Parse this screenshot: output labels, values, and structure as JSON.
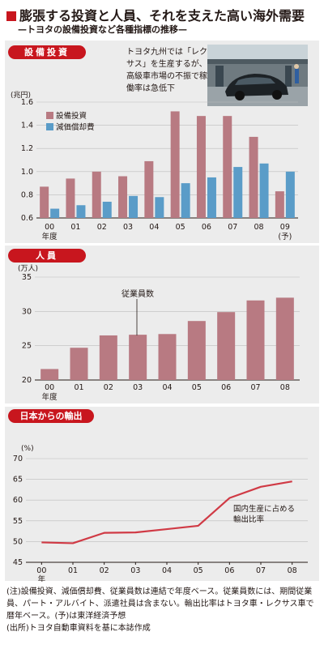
{
  "header": {
    "title": "膨張する投資と人員、それを支えた高い海外需要",
    "subtitle": "—トヨタの設備投資など各種指標の推移—"
  },
  "photo": {
    "caption": "トヨタ九州では「レクサス」を生産するが、高級車市場の不振で稼働率は急低下"
  },
  "notes": {
    "note1": "(注)設備投資、減価償却費、従業員数は連結で年度ベース。従業員数には、期間従業員、パート・アルバイト、派遣社員は含まない。輸出比率はトヨタ車・レクサス車で暦年ベース。(予)は東洋経済予想",
    "note2": "(出所)トヨタ自動車資料を基に本誌作成"
  },
  "colors": {
    "accent": "#c8161e",
    "bar_pink": "#b87a82",
    "bar_blue": "#5a9cc8",
    "line": "#d03a45",
    "panel": "#ececec"
  },
  "chart_data": [
    {
      "type": "bar",
      "section_label": "設備投資",
      "unit": "(兆円)",
      "categories": [
        "00",
        "01",
        "02",
        "03",
        "04",
        "05",
        "06",
        "07",
        "08",
        "09"
      ],
      "category_sublabels": [
        "年度",
        "",
        "",
        "",
        "",
        "",
        "",
        "",
        "",
        "(予)"
      ],
      "series": [
        {
          "name": "設備投資",
          "values": [
            0.87,
            0.94,
            1.0,
            0.96,
            1.09,
            1.52,
            1.48,
            1.48,
            1.3,
            0.83
          ]
        },
        {
          "name": "減価償却費",
          "values": [
            0.68,
            0.71,
            0.74,
            0.79,
            0.78,
            0.9,
            0.95,
            1.04,
            1.07,
            1.0
          ]
        }
      ],
      "yticks": [
        "0.6",
        "0.8",
        "1.0",
        "1.2",
        "1.4",
        "1.6"
      ],
      "ylim": [
        0.6,
        1.6
      ],
      "legend": "top-left"
    },
    {
      "type": "bar",
      "section_label": "人員",
      "unit": "(万人)",
      "categories": [
        "00",
        "01",
        "02",
        "03",
        "04",
        "05",
        "06",
        "07",
        "08"
      ],
      "category_sublabels": [
        "年度",
        "",
        "",
        "",
        "",
        "",
        "",
        "",
        ""
      ],
      "series": [
        {
          "name": "従業員数",
          "values": [
            21.6,
            24.7,
            26.5,
            26.6,
            26.7,
            28.6,
            29.9,
            31.6,
            32.0
          ]
        }
      ],
      "yticks": [
        "20",
        "25",
        "30",
        "35"
      ],
      "ylim": [
        20,
        35
      ],
      "annotation": "従業員数"
    },
    {
      "type": "line",
      "section_label": "日本からの輸出",
      "unit": "(%)",
      "categories": [
        "00",
        "01",
        "02",
        "03",
        "04",
        "05",
        "06",
        "07",
        "08"
      ],
      "category_sublabels": [
        "年",
        "",
        "",
        "",
        "",
        "",
        "",
        "",
        ""
      ],
      "series": [
        {
          "name": "国内生産に占める輸出比率",
          "values": [
            49.8,
            49.6,
            52.1,
            52.2,
            53.0,
            53.8,
            60.5,
            63.2,
            64.5
          ]
        }
      ],
      "yticks": [
        "45",
        "50",
        "55",
        "60",
        "65",
        "70"
      ],
      "ylim": [
        45,
        70
      ],
      "annotation": "国内生産に占める輸出比率"
    }
  ]
}
